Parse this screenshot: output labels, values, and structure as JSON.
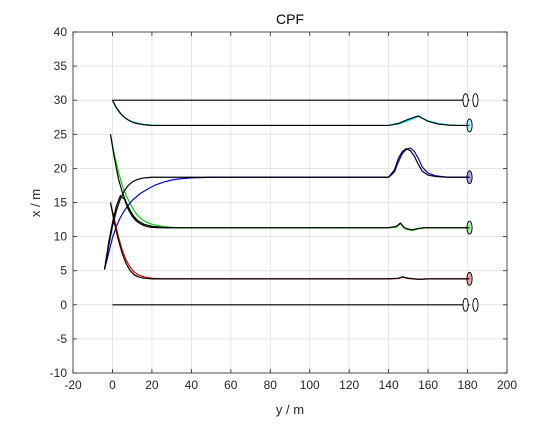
{
  "chart_data": {
    "type": "line",
    "title": "CPF",
    "xlabel": "y / m",
    "ylabel": "x / m",
    "xlim": [
      -20,
      200
    ],
    "ylim": [
      -10,
      40
    ],
    "xticks": [
      -20,
      0,
      20,
      40,
      60,
      80,
      100,
      120,
      140,
      160,
      180,
      200
    ],
    "yticks": [
      -10,
      -5,
      0,
      5,
      10,
      15,
      20,
      25,
      30,
      35,
      40
    ],
    "grid": true,
    "legend": "none",
    "colors": {
      "axes": "#262626",
      "grid": "#dfdfdf",
      "reference": "#000000",
      "cyan": "#00e5ee",
      "green": "#00d400",
      "blue": "#0000cc",
      "red": "#dd0000"
    },
    "series": [
      {
        "color": "cyan",
        "x": [
          0,
          2,
          4,
          6,
          8,
          10,
          12,
          14,
          16,
          18,
          20,
          25,
          30,
          40,
          60,
          100,
          140,
          145,
          150,
          155,
          160,
          165,
          170,
          175,
          181
        ],
        "y": [
          30,
          28.8,
          28.0,
          27.5,
          27.1,
          26.85,
          26.7,
          26.55,
          26.45,
          26.4,
          26.35,
          26.3,
          26.3,
          26.3,
          26.3,
          26.3,
          26.3,
          26.5,
          27.0,
          27.6,
          27.0,
          26.6,
          26.4,
          26.3,
          26.3
        ]
      },
      {
        "color": "green",
        "x": [
          -1,
          1,
          3,
          5,
          7,
          9,
          11,
          13,
          16,
          20,
          25,
          30,
          35,
          40,
          60,
          100,
          140,
          144,
          146,
          148,
          150,
          152,
          155,
          158,
          162,
          170,
          181
        ],
        "y": [
          25,
          22.0,
          19.5,
          17.5,
          16.0,
          14.8,
          13.8,
          13.0,
          12.3,
          11.8,
          11.5,
          11.35,
          11.3,
          11.3,
          11.3,
          11.3,
          11.3,
          11.4,
          11.9,
          11.2,
          11.0,
          10.9,
          11.1,
          11.3,
          11.3,
          11.3,
          11.3
        ]
      },
      {
        "color": "blue",
        "x": [
          -4,
          -2,
          0,
          2,
          4,
          6,
          8,
          10,
          14,
          18,
          22,
          26,
          30,
          35,
          40,
          50,
          80,
          120,
          140,
          143,
          145,
          147,
          149,
          151,
          153,
          155,
          157,
          160,
          164,
          170,
          181
        ],
        "y": [
          5.2,
          7.5,
          9.8,
          11.5,
          12.8,
          13.8,
          14.6,
          15.3,
          16.3,
          17.0,
          17.6,
          18.0,
          18.3,
          18.5,
          18.6,
          18.7,
          18.7,
          18.7,
          18.7,
          19.5,
          21.0,
          22.2,
          22.8,
          23.0,
          22.5,
          21.5,
          20.2,
          19.3,
          18.9,
          18.7,
          18.7
        ]
      },
      {
        "color": "red",
        "x": [
          -1,
          1,
          3,
          5,
          7,
          9,
          11,
          13,
          16,
          20,
          25,
          30,
          40,
          60,
          100,
          140,
          145,
          147,
          150,
          155,
          160,
          181
        ],
        "y": [
          15,
          12.5,
          10.0,
          8.0,
          6.5,
          5.5,
          4.8,
          4.4,
          4.1,
          3.9,
          3.8,
          3.8,
          3.8,
          3.8,
          3.8,
          3.8,
          3.85,
          4.05,
          3.85,
          3.75,
          3.8,
          3.8
        ]
      },
      {
        "color": "reference",
        "x": [
          0,
          181
        ],
        "y": [
          30,
          30
        ]
      },
      {
        "color": "reference",
        "x": [
          0,
          181
        ],
        "y": [
          0,
          0
        ]
      },
      {
        "color": "reference",
        "x": [
          0,
          2,
          4,
          6,
          8,
          10,
          12,
          14,
          16,
          18,
          20,
          25,
          30,
          40,
          60,
          100,
          140,
          145,
          150,
          155,
          160,
          165,
          170,
          175,
          181
        ],
        "y": [
          30,
          28.9,
          28.1,
          27.5,
          27.1,
          26.8,
          26.6,
          26.5,
          26.4,
          26.35,
          26.3,
          26.3,
          26.3,
          26.3,
          26.3,
          26.3,
          26.3,
          26.6,
          27.2,
          27.7,
          26.9,
          26.5,
          26.35,
          26.3,
          26.3
        ]
      },
      {
        "color": "reference",
        "x": [
          -1,
          1,
          3,
          5,
          7,
          9,
          11,
          13,
          16,
          20,
          25,
          30,
          35,
          40,
          60,
          100,
          140,
          144,
          146,
          148,
          150,
          152,
          155,
          158,
          162,
          170,
          181
        ],
        "y": [
          25,
          21.5,
          18.5,
          16.5,
          15.0,
          13.8,
          12.9,
          12.3,
          11.8,
          11.5,
          11.35,
          11.3,
          11.3,
          11.3,
          11.3,
          11.3,
          11.3,
          11.5,
          12.0,
          11.3,
          11.1,
          11.0,
          11.2,
          11.3,
          11.3,
          11.3,
          11.3
        ]
      },
      {
        "color": "reference",
        "x": [
          -4,
          -2,
          0,
          2,
          4,
          6,
          8,
          10,
          12,
          14,
          16,
          18,
          20,
          25,
          30,
          40,
          60,
          100,
          140,
          143,
          145,
          147,
          149,
          151,
          153,
          155,
          157,
          160,
          164,
          170,
          181
        ],
        "y": [
          5.2,
          8.5,
          11.5,
          13.8,
          15.5,
          16.7,
          17.5,
          18.0,
          18.3,
          18.5,
          18.6,
          18.65,
          18.7,
          18.7,
          18.7,
          18.7,
          18.7,
          18.7,
          18.7,
          19.8,
          21.5,
          22.5,
          22.9,
          22.6,
          21.8,
          20.6,
          19.6,
          19.0,
          18.8,
          18.7,
          18.7
        ]
      },
      {
        "color": "reference",
        "x": [
          -1,
          1,
          3,
          5,
          7,
          9,
          11,
          13,
          16,
          20,
          25,
          30,
          40,
          60,
          100,
          140,
          145,
          147,
          150,
          155,
          160,
          181
        ],
        "y": [
          15,
          12.0,
          9.5,
          7.5,
          6.0,
          5.0,
          4.4,
          4.1,
          3.9,
          3.8,
          3.8,
          3.8,
          3.8,
          3.8,
          3.8,
          3.8,
          3.9,
          4.1,
          3.9,
          3.75,
          3.8,
          3.8
        ]
      },
      {
        "color": "reference",
        "x": [
          -4,
          -2,
          0,
          2,
          4,
          6,
          8,
          10,
          12,
          14,
          16,
          18,
          20,
          25,
          30
        ],
        "y": [
          5.2,
          9.0,
          12.0,
          14.5,
          16.0,
          15.5,
          14.0,
          13.0,
          12.3,
          11.9,
          11.6,
          11.45,
          11.35,
          11.3,
          11.3
        ]
      }
    ],
    "markers": [
      {
        "shape": "ellipse",
        "x": 179,
        "y": 30,
        "color": "reference"
      },
      {
        "shape": "ellipse",
        "x": 184,
        "y": 30,
        "color": "reference"
      },
      {
        "shape": "ellipse",
        "x": 181,
        "y": 26.3,
        "color": "cyan"
      },
      {
        "shape": "ellipse",
        "x": 181,
        "y": 18.7,
        "color": "blue"
      },
      {
        "shape": "ellipse",
        "x": 181,
        "y": 11.3,
        "color": "green"
      },
      {
        "shape": "ellipse",
        "x": 181,
        "y": 3.8,
        "color": "red"
      },
      {
        "shape": "ellipse",
        "x": 179,
        "y": 0,
        "color": "reference"
      },
      {
        "shape": "ellipse",
        "x": 184,
        "y": 0,
        "color": "reference"
      }
    ]
  }
}
